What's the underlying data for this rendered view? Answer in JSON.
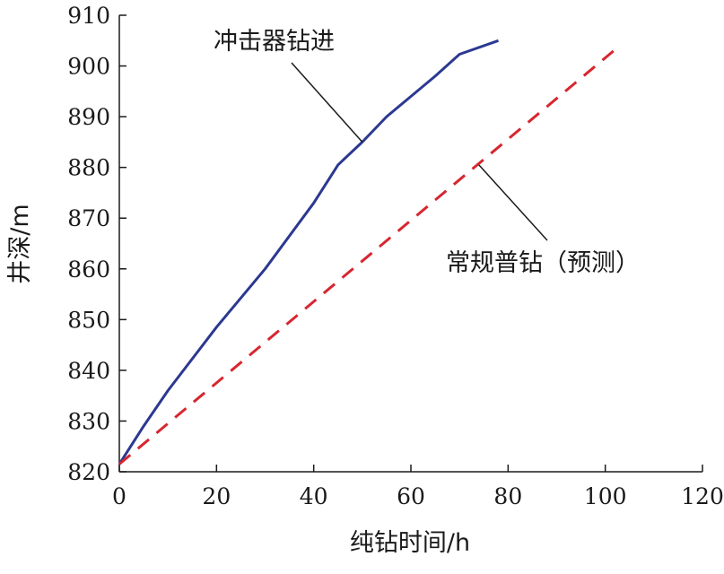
{
  "chart_data": {
    "type": "line",
    "xlabel": "纯钻时间/h",
    "ylabel": "井深/m",
    "xlim": [
      0,
      120
    ],
    "ylim": [
      820,
      910
    ],
    "xticks": [
      0,
      20,
      40,
      60,
      80,
      100,
      120
    ],
    "yticks": [
      820,
      830,
      840,
      850,
      860,
      870,
      880,
      890,
      900,
      910
    ],
    "grid": false,
    "legend": "none",
    "series": [
      {
        "name": "冲击器钻进",
        "color": "#2b3990",
        "style": "solid",
        "x": [
          0,
          5,
          10,
          20,
          30,
          40,
          45,
          50,
          55,
          60,
          65,
          70,
          78
        ],
        "y": [
          821.5,
          829,
          836,
          848.5,
          860,
          873,
          880.5,
          885,
          890,
          894,
          898,
          902.3,
          905
        ]
      },
      {
        "name": "常规普钻（预测）",
        "color": "#d7262f",
        "style": "dashed",
        "x": [
          0,
          103
        ],
        "y": [
          821.5,
          904
        ]
      }
    ],
    "annotations": [
      {
        "text": "冲击器钻进",
        "series": 0,
        "point_x": 50,
        "point_y": 885
      },
      {
        "text": "常规普钻（预测）",
        "series": 1,
        "point_x": 74,
        "point_y": 880.5
      }
    ]
  }
}
